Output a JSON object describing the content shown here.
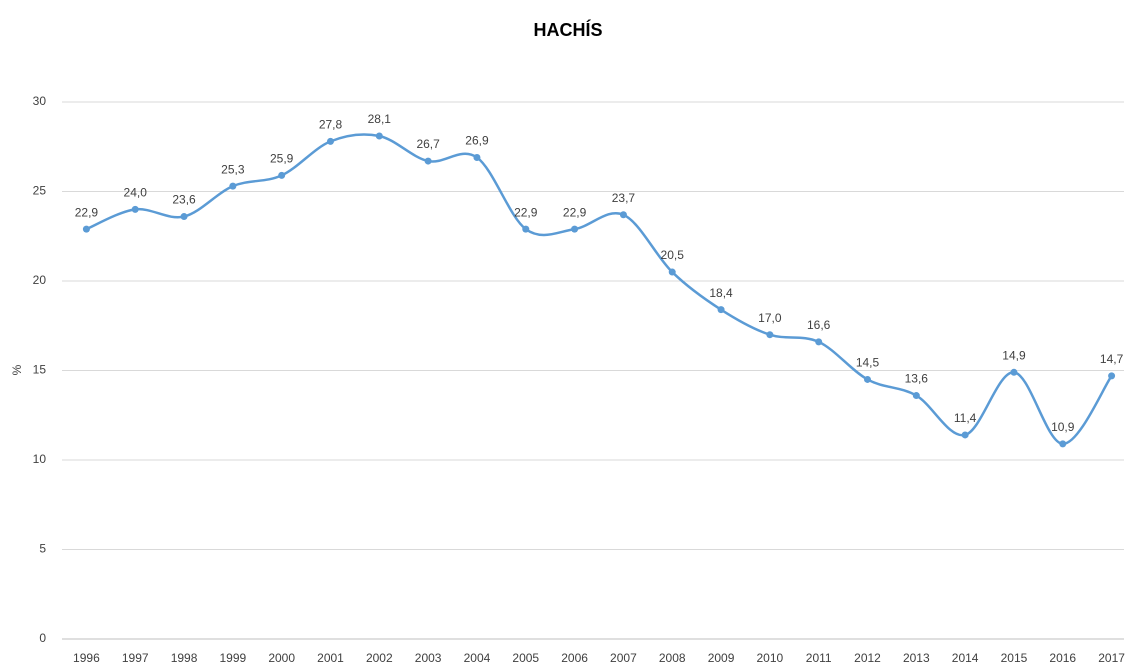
{
  "chart_data": {
    "type": "line",
    "title": "HACHÍS",
    "y_label": "%",
    "categories": [
      "1996",
      "1997",
      "1998",
      "1999",
      "2000",
      "2001",
      "2002",
      "2003",
      "2004",
      "2005",
      "2006",
      "2007",
      "2008",
      "2009",
      "2010",
      "2011",
      "2012",
      "2013",
      "2014",
      "2015",
      "2016",
      "2017"
    ],
    "series": [
      {
        "color": "#5b9bd5",
        "values": [
          22.9,
          24.0,
          23.6,
          25.3,
          25.9,
          27.8,
          28.1,
          26.7,
          26.9,
          22.9,
          22.9,
          23.7,
          20.5,
          18.4,
          17.0,
          16.6,
          14.5,
          13.6,
          11.4,
          14.9,
          10.9,
          14.7
        ],
        "value_labels": [
          "22,9",
          "24,0",
          "23,6",
          "25,3",
          "25,9",
          "27,8",
          "28,1",
          "26,7",
          "26,9",
          "22,9",
          "22,9",
          "23,7",
          "20,5",
          "18,4",
          "17,0",
          "16,6",
          "14,5",
          "13,6",
          "11,4",
          "14,9",
          "10,9",
          "14,7"
        ]
      }
    ],
    "ylim": [
      0,
      30
    ],
    "yticks": [
      0,
      5,
      10,
      15,
      20,
      25,
      30
    ],
    "grid": true,
    "smooth": true
  }
}
